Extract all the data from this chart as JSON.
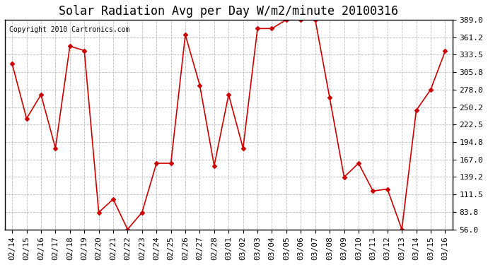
{
  "title": "Solar Radiation Avg per Day W/m2/minute 20100316",
  "copyright": "Copyright 2010 Cartronics.com",
  "x_labels": [
    "02/14",
    "02/15",
    "02/16",
    "02/17",
    "02/18",
    "02/19",
    "02/20",
    "02/21",
    "02/22",
    "02/23",
    "02/24",
    "02/25",
    "02/26",
    "02/27",
    "02/28",
    "03/01",
    "03/02",
    "03/03",
    "03/04",
    "03/05",
    "03/06",
    "03/07",
    "03/08",
    "03/09",
    "03/10",
    "03/11",
    "03/12",
    "03/13",
    "03/14",
    "03/15",
    "03/16"
  ],
  "values": [
    319.0,
    232.0,
    270.0,
    185.0,
    347.0,
    340.0,
    83.0,
    104.0,
    56.0,
    83.0,
    161.0,
    161.0,
    365.0,
    285.0,
    157.0,
    270.0,
    185.0,
    375.0,
    375.0,
    389.0,
    389.0,
    389.0,
    265.0,
    139.0,
    161.0,
    117.0,
    120.0,
    56.0,
    245.0,
    278.0,
    339.0
  ],
  "line_color": "#cc0000",
  "marker": "D",
  "marker_size": 3,
  "bg_color": "#ffffff",
  "grid_color": "#bbbbbb",
  "ylim": [
    56.0,
    389.0
  ],
  "yticks": [
    56.0,
    83.8,
    111.5,
    139.2,
    167.0,
    194.8,
    222.5,
    250.2,
    278.0,
    305.8,
    333.5,
    361.2,
    389.0
  ],
  "title_fontsize": 12,
  "tick_fontsize": 8,
  "copyright_fontsize": 7
}
